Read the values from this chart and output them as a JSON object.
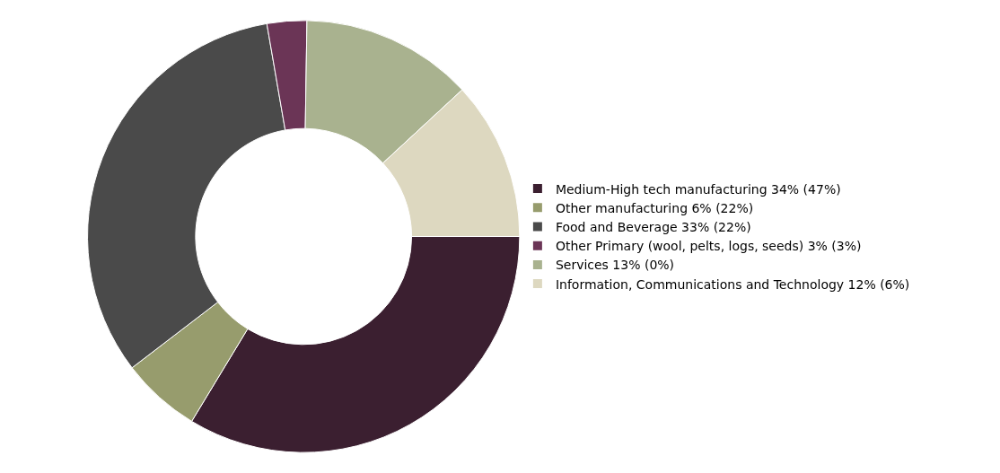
{
  "chart_data": {
    "type": "donut",
    "categories": [
      "Medium-High tech manufacturing 34% (47%)",
      "Other manufacturing 6% (22%)",
      "Food and Beverage 33% (22%)",
      "Other Primary (wool, pelts, logs, seeds) 3% (3%)",
      "Services 13% (0%)",
      "Information, Communications and Technology 12% (6%)"
    ],
    "values": [
      34,
      6,
      33,
      3,
      13,
      12
    ],
    "colors": [
      "#3b1f30",
      "#979c6d",
      "#4a4a4a",
      "#6b3556",
      "#a9b28f",
      "#ddd8c0"
    ],
    "legend": "right"
  }
}
